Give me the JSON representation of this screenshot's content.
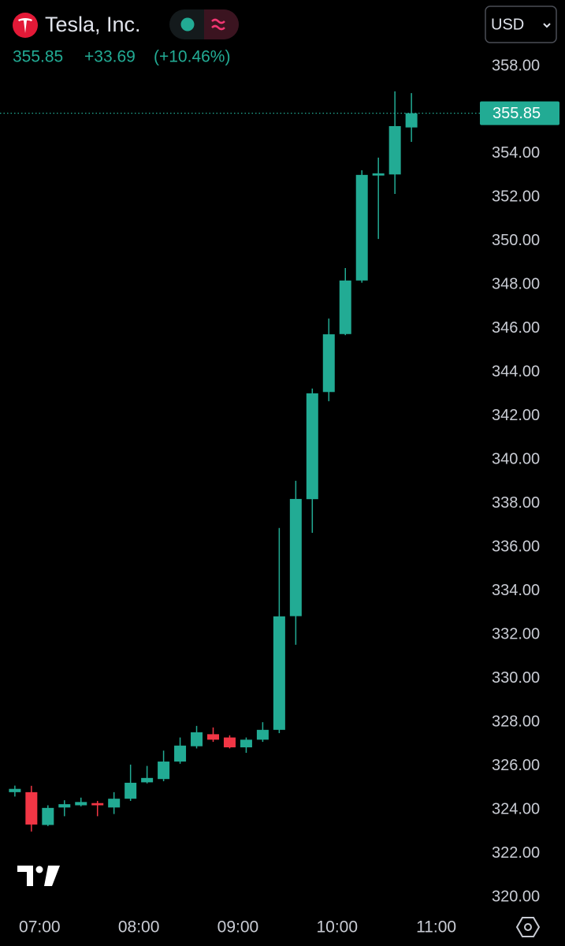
{
  "header": {
    "title": "Tesla, Inc.",
    "change": "+33.69",
    "change_pct": "(+10.46%)",
    "currency": "USD"
  },
  "chart_data": {
    "type": "candlestick",
    "x": [
      405,
      415,
      425,
      435,
      445,
      455,
      465,
      475,
      485,
      495,
      505,
      515,
      525,
      535,
      545,
      555,
      565,
      575,
      585,
      595,
      605,
      615,
      625,
      635,
      645
    ],
    "open": [
      324.8,
      324.8,
      323.3,
      324.1,
      324.2,
      324.3,
      324.1,
      324.5,
      325.25,
      325.4,
      326.2,
      326.9,
      327.45,
      327.3,
      326.85,
      327.2,
      327.65,
      332.85,
      338.2,
      343.1,
      345.75,
      348.2,
      353.0,
      353.05,
      355.2
    ],
    "high": [
      325.1,
      325.09,
      324.2,
      324.43,
      324.55,
      324.4,
      324.8,
      326.06,
      326.0,
      326.7,
      327.3,
      327.83,
      327.76,
      327.4,
      327.3,
      328.0,
      336.88,
      339.04,
      343.26,
      346.46,
      348.77,
      353.24,
      353.82,
      356.85,
      356.77
    ],
    "low": [
      324.6,
      323.0,
      323.25,
      323.7,
      324.15,
      323.7,
      323.8,
      324.4,
      325.2,
      325.3,
      326.1,
      326.8,
      327.1,
      326.8,
      326.6,
      327.1,
      327.5,
      331.54,
      336.66,
      342.68,
      345.7,
      348.1,
      350.1,
      352.16,
      354.54
    ],
    "close": [
      324.95,
      323.32,
      324.08,
      324.25,
      324.35,
      324.2,
      324.5,
      325.23,
      325.45,
      326.2,
      326.93,
      327.54,
      327.2,
      326.85,
      327.2,
      327.65,
      332.84,
      338.21,
      343.04,
      345.74,
      348.2,
      353.03,
      353.1,
      355.26,
      355.85
    ],
    "up_color": "#22ab94",
    "down_color": "#f23645",
    "last_price": 355.85,
    "xlim": [
      396,
      685
    ],
    "xticks": [
      {
        "value": 420,
        "label": "07:00"
      },
      {
        "value": 480,
        "label": "08:00"
      },
      {
        "value": 540,
        "label": "09:00"
      },
      {
        "value": 600,
        "label": "10:00"
      },
      {
        "value": 660,
        "label": "11:00"
      }
    ],
    "ylim": [
      320,
      358
    ],
    "yticks": [
      {
        "value": 320,
        "label": "320.00"
      },
      {
        "value": 322,
        "label": "322.00"
      },
      {
        "value": 324,
        "label": "324.00"
      },
      {
        "value": 326,
        "label": "326.00"
      },
      {
        "value": 328,
        "label": "328.00"
      },
      {
        "value": 330,
        "label": "330.00"
      },
      {
        "value": 332,
        "label": "332.00"
      },
      {
        "value": 334,
        "label": "334.00"
      },
      {
        "value": 336,
        "label": "336.00"
      },
      {
        "value": 338,
        "label": "338.00"
      },
      {
        "value": 340,
        "label": "340.00"
      },
      {
        "value": 342,
        "label": "342.00"
      },
      {
        "value": 344,
        "label": "344.00"
      },
      {
        "value": 346,
        "label": "346.00"
      },
      {
        "value": 348,
        "label": "348.00"
      },
      {
        "value": 350,
        "label": "350.00"
      },
      {
        "value": 352,
        "label": "352.00"
      },
      {
        "value": 354,
        "label": "354.00"
      },
      {
        "value": 356,
        "label": "356.00"
      },
      {
        "value": 358,
        "label": "358.00"
      }
    ],
    "grid": false
  }
}
